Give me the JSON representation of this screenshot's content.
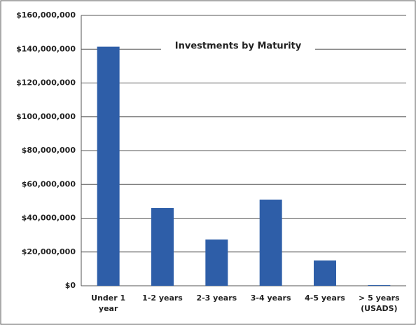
{
  "chart_data": {
    "type": "bar",
    "title": "Investments by Maturity",
    "categories": [
      "Under 1 year",
      "1-2 years",
      "2-3 years",
      "3-4 years",
      "4-5 years",
      "> 5 years (USADS)"
    ],
    "values": [
      141500000,
      46000000,
      27400000,
      51000000,
      15000000,
      400000
    ],
    "color": "#2e5ea8",
    "ylim": [
      0,
      160000000
    ],
    "yticks": [
      {
        "value": 0,
        "label": "$0"
      },
      {
        "value": 20000000,
        "label": "$20,000,000"
      },
      {
        "value": 40000000,
        "label": "$40,000,000"
      },
      {
        "value": 60000000,
        "label": "$60,000,000"
      },
      {
        "value": 80000000,
        "label": "$80,000,000"
      },
      {
        "value": 100000000,
        "label": "$100,000,000"
      },
      {
        "value": 120000000,
        "label": "$120,000,000"
      },
      {
        "value": 140000000,
        "label": "$140,000,000"
      },
      {
        "value": 160000000,
        "label": "$160,000,000"
      }
    ],
    "grid": true
  }
}
